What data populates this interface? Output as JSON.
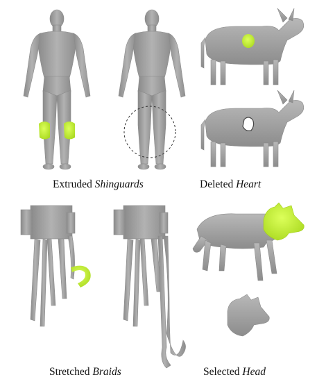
{
  "figure": {
    "panels": [
      {
        "id": "shinguards",
        "caption_prefix": "Extruded ",
        "caption_emph": "Shinguards"
      },
      {
        "id": "heart",
        "caption_prefix": "Deleted ",
        "caption_emph": "Heart"
      },
      {
        "id": "braids",
        "caption_prefix": "Stretched ",
        "caption_emph": "Braids"
      },
      {
        "id": "head",
        "caption_prefix": "Selected ",
        "caption_emph": "Head"
      }
    ]
  },
  "colors": {
    "mesh": "#9e9e9e",
    "mesh_dark": "#7d7d7d",
    "mesh_light": "#bdbdbd",
    "highlight": "#c8f03a",
    "highlight_dark": "#a6d21c"
  }
}
